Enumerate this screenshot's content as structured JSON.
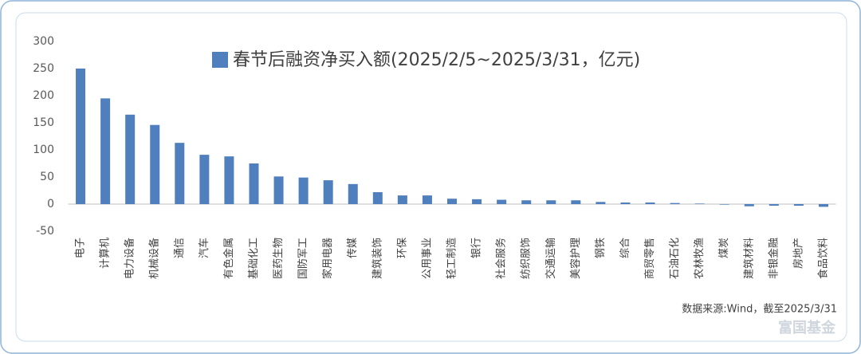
{
  "chart_data": {
    "type": "bar",
    "series": [
      {
        "name": "春节后融资净买入额(2025/2/5~2025/3/31，亿元)",
        "color": "#4f7fbd",
        "values": [
          250,
          195,
          165,
          146,
          113,
          91,
          88,
          75,
          51,
          49,
          44,
          37,
          22,
          16,
          16,
          10,
          9,
          8,
          7,
          7,
          7,
          4,
          3,
          3,
          2,
          1,
          -1,
          -4,
          -3,
          -3,
          -5
        ]
      }
    ],
    "categories": [
      "电子",
      "计算机",
      "电力设备",
      "机械设备",
      "通信",
      "汽车",
      "有色金属",
      "基础化工",
      "医药生物",
      "国防军工",
      "家用电器",
      "传媒",
      "建筑装饰",
      "环保",
      "公用事业",
      "轻工制造",
      "银行",
      "社会服务",
      "纺织服饰",
      "交通运输",
      "美容护理",
      "钢铁",
      "综合",
      "商贸零售",
      "石油石化",
      "农林牧渔",
      "煤炭",
      "建筑材料",
      "非银金融",
      "房地产",
      "食品饮料"
    ],
    "ylim": [
      -50,
      300
    ],
    "yticks": [
      -50,
      0,
      50,
      100,
      150,
      200,
      250,
      300
    ],
    "source": "数据来源:Wind，截至2025/3/31",
    "watermark": "富国基金"
  }
}
